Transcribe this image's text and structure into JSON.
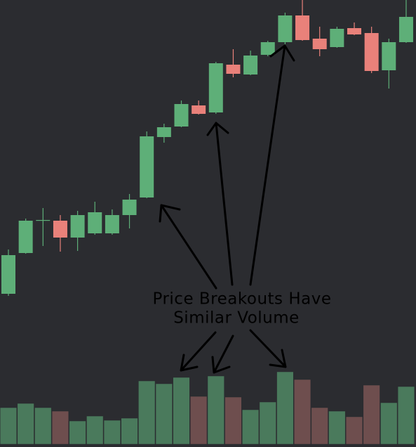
{
  "chart_data": {
    "type": "candlestick",
    "annotation": [
      "Price Breakouts Have",
      "Similar Volume"
    ],
    "up_color": "#5eaf78",
    "down_color": "#e9817a",
    "volume_up_color": "#4a7a5c",
    "volume_down_color": "#6e4e4e",
    "ylim": [
      4,
      640
    ],
    "volume_ylim": [
      0,
      632
    ],
    "open": [
      222,
      280,
      326,
      326,
      302,
      308,
      308,
      334,
      359,
      445,
      460,
      490,
      480,
      548,
      534,
      562,
      580,
      618,
      585,
      573,
      600,
      593,
      540,
      580
    ],
    "high": [
      285,
      329,
      344,
      334,
      340,
      353,
      342,
      364,
      453,
      464,
      497,
      497,
      552,
      570,
      568,
      582,
      622,
      640,
      602,
      602,
      608,
      602,
      585,
      640
    ],
    "low": [
      219,
      279,
      290,
      282,
      283,
      306,
      306,
      315,
      358,
      437,
      459,
      477,
      478,
      530,
      533,
      560,
      577,
      582,
      560,
      572,
      590,
      536,
      514,
      579
    ],
    "close": [
      277,
      326,
      327,
      302,
      334,
      338,
      334,
      356,
      446,
      459,
      492,
      478,
      550,
      535,
      561,
      580,
      618,
      583,
      570,
      599,
      591,
      539,
      580,
      616
    ],
    "volume": [
      52,
      58,
      52,
      47,
      33,
      40,
      34,
      37,
      90,
      86,
      95,
      68,
      97,
      67,
      49,
      60,
      103,
      92,
      52,
      47,
      39,
      84,
      59,
      82
    ]
  }
}
